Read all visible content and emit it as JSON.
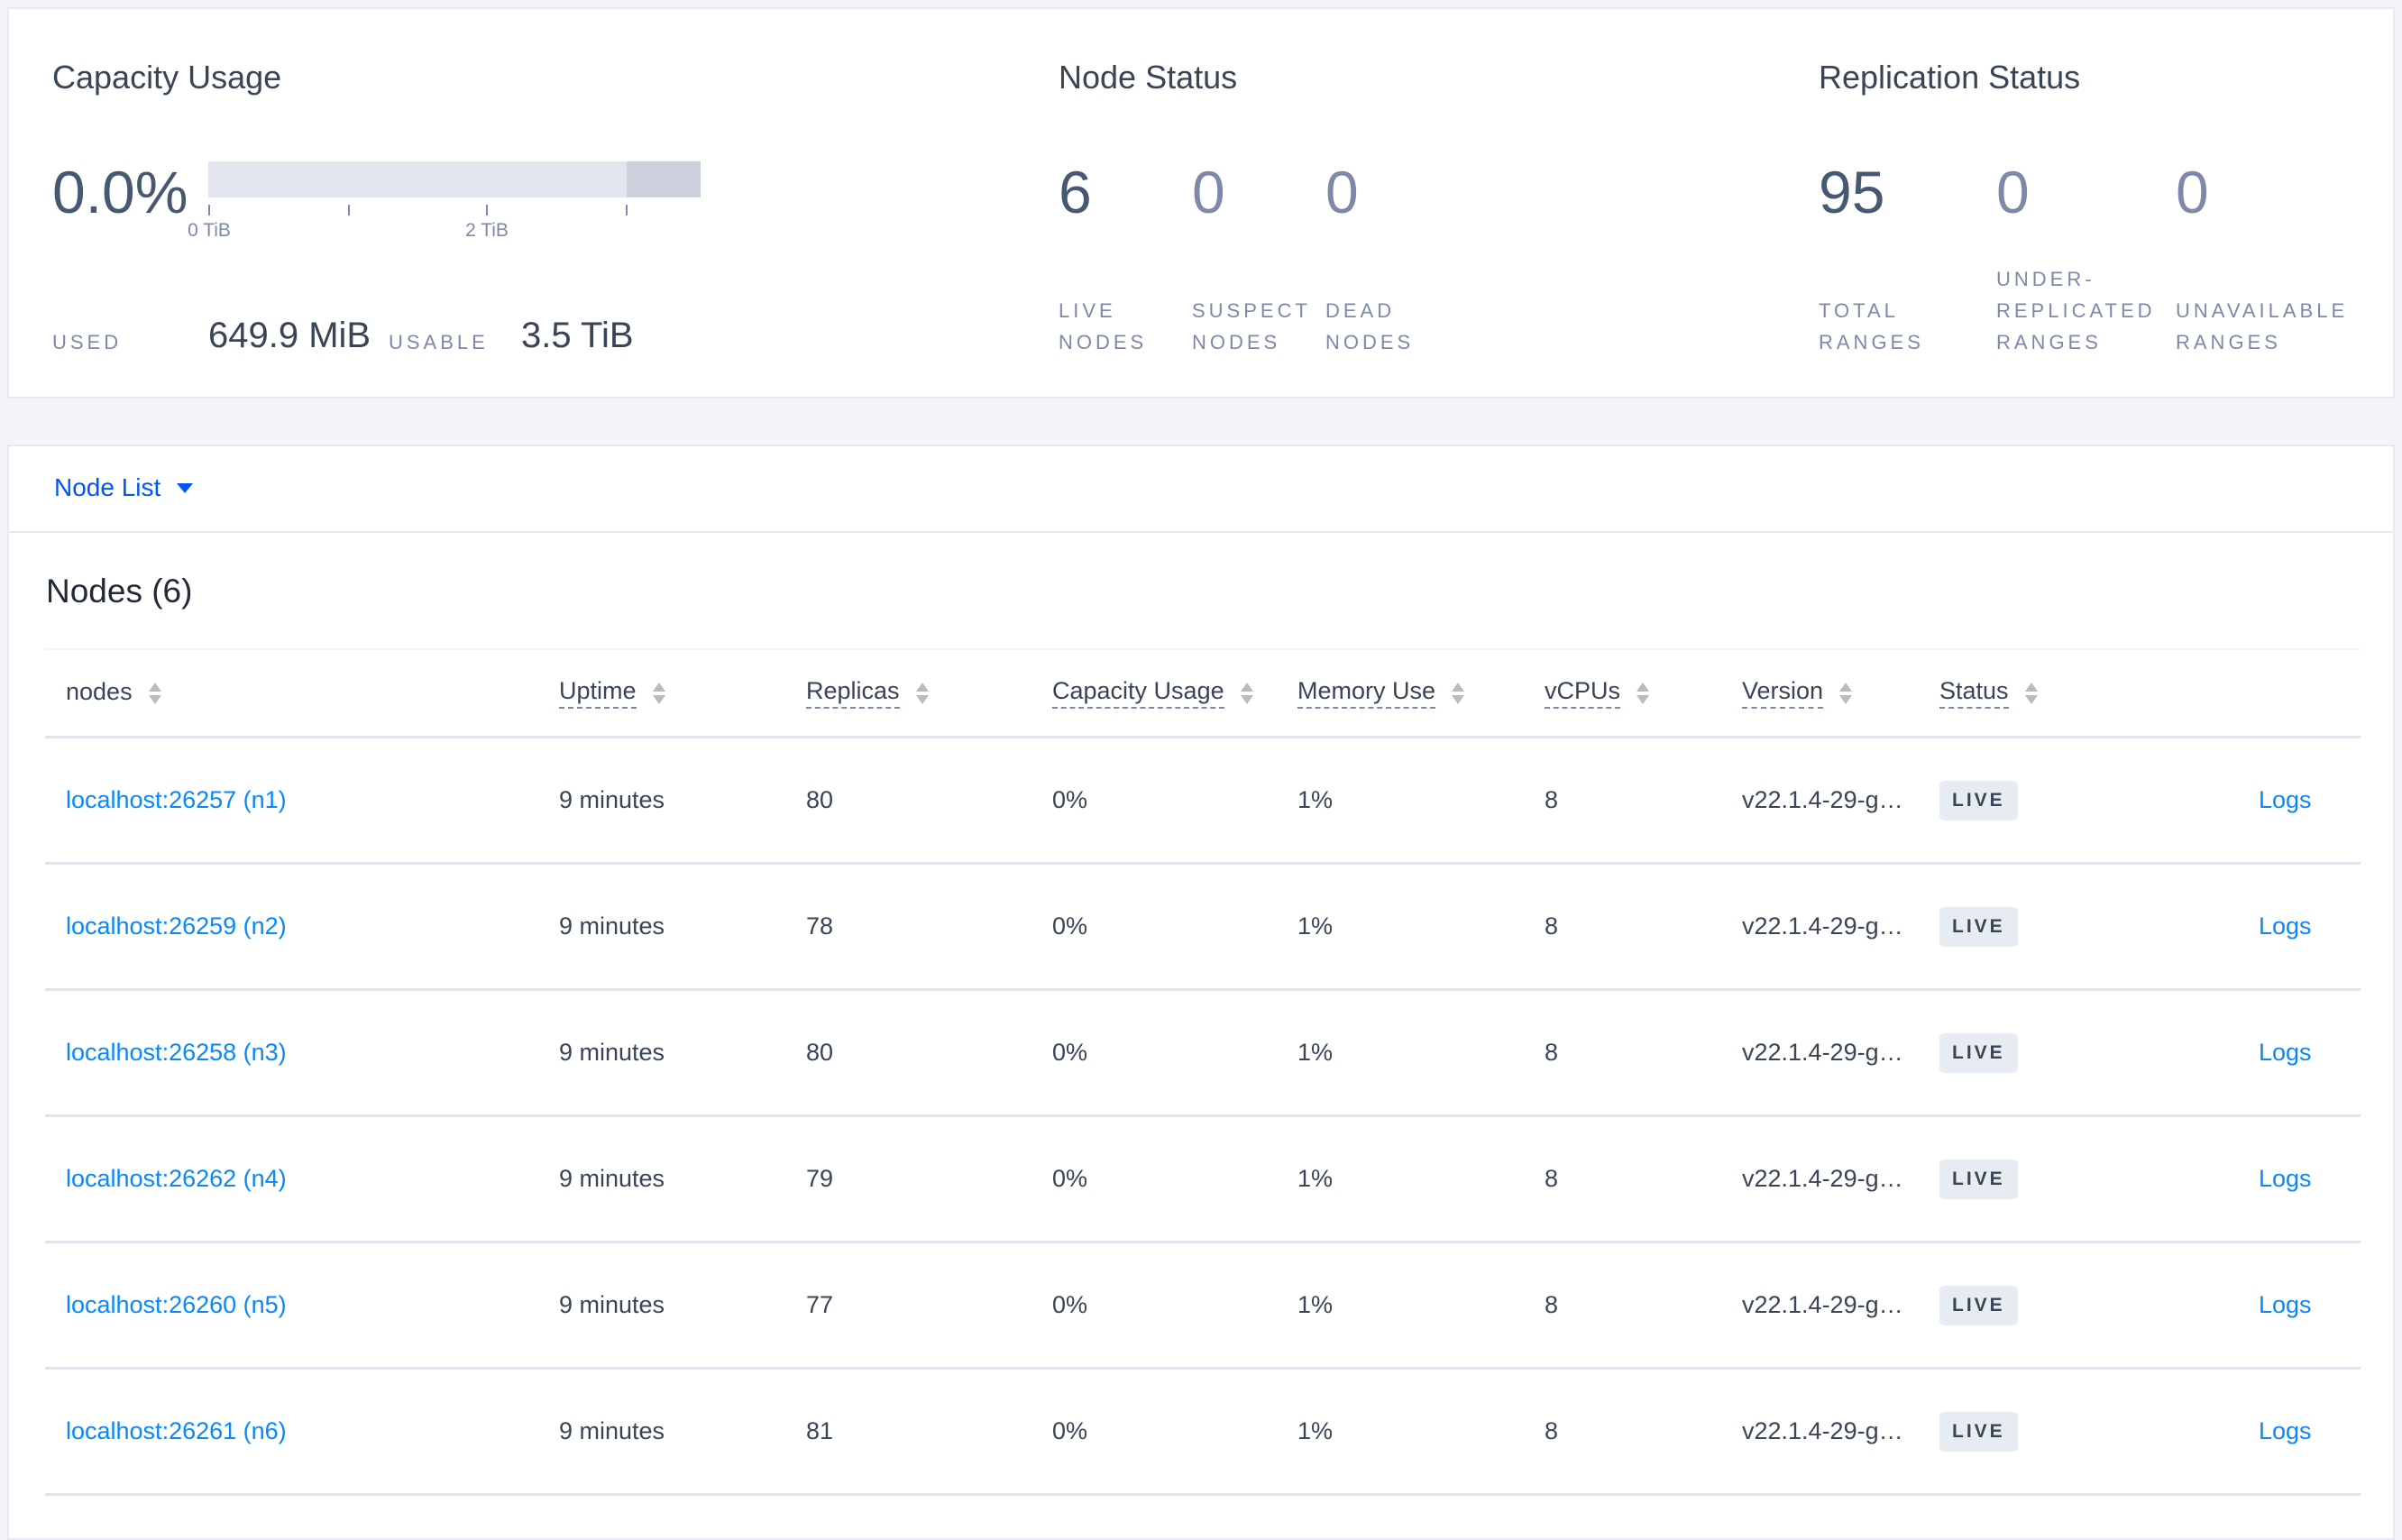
{
  "capacity": {
    "title": "Capacity Usage",
    "percent": "0.0%",
    "used_fraction": 0.0002,
    "usable_portion_of_scale": 0.85,
    "ticks": [
      "0 TiB",
      "2 TiB"
    ],
    "used_label": "USED",
    "used_value": "649.9 MiB",
    "usable_label": "USABLE",
    "usable_value": "3.5 TiB"
  },
  "node_status": {
    "title": "Node Status",
    "items": [
      {
        "value": "6",
        "label": [
          "LIVE",
          "NODES"
        ]
      },
      {
        "value": "0",
        "label": [
          "SUSPECT",
          "NODES"
        ]
      },
      {
        "value": "0",
        "label": [
          "DEAD",
          "NODES"
        ]
      }
    ]
  },
  "replication": {
    "title": "Replication Status",
    "items": [
      {
        "value": "95",
        "label": [
          "TOTAL",
          "RANGES"
        ]
      },
      {
        "value": "0",
        "label": [
          "UNDER-",
          "REPLICATED",
          "RANGES"
        ]
      },
      {
        "value": "0",
        "label": [
          "UNAVAILABLE",
          "RANGES"
        ]
      }
    ]
  },
  "node_list": {
    "dropdown": "Node List",
    "heading": "Nodes (6)",
    "columns": [
      "nodes",
      "Uptime",
      "Replicas",
      "Capacity Usage",
      "Memory Use",
      "vCPUs",
      "Version",
      "Status"
    ],
    "rows": [
      {
        "node": "localhost:26257 (n1)",
        "uptime": "9 minutes",
        "replicas": "80",
        "capacity": "0%",
        "memory": "1%",
        "vcpus": "8",
        "version": "v22.1.4-29-g…",
        "status": "LIVE",
        "logs": "Logs"
      },
      {
        "node": "localhost:26259 (n2)",
        "uptime": "9 minutes",
        "replicas": "78",
        "capacity": "0%",
        "memory": "1%",
        "vcpus": "8",
        "version": "v22.1.4-29-g…",
        "status": "LIVE",
        "logs": "Logs"
      },
      {
        "node": "localhost:26258 (n3)",
        "uptime": "9 minutes",
        "replicas": "80",
        "capacity": "0%",
        "memory": "1%",
        "vcpus": "8",
        "version": "v22.1.4-29-g…",
        "status": "LIVE",
        "logs": "Logs"
      },
      {
        "node": "localhost:26262 (n4)",
        "uptime": "9 minutes",
        "replicas": "79",
        "capacity": "0%",
        "memory": "1%",
        "vcpus": "8",
        "version": "v22.1.4-29-g…",
        "status": "LIVE",
        "logs": "Logs"
      },
      {
        "node": "localhost:26260 (n5)",
        "uptime": "9 minutes",
        "replicas": "77",
        "capacity": "0%",
        "memory": "1%",
        "vcpus": "8",
        "version": "v22.1.4-29-g…",
        "status": "LIVE",
        "logs": "Logs"
      },
      {
        "node": "localhost:26261 (n6)",
        "uptime": "9 minutes",
        "replicas": "81",
        "capacity": "0%",
        "memory": "1%",
        "vcpus": "8",
        "version": "v22.1.4-29-g…",
        "status": "LIVE",
        "logs": "Logs"
      }
    ]
  },
  "colors": {
    "link": "#0788ff",
    "accent": "#0055ff",
    "text": "#394455",
    "muted": "#7e89a9"
  }
}
